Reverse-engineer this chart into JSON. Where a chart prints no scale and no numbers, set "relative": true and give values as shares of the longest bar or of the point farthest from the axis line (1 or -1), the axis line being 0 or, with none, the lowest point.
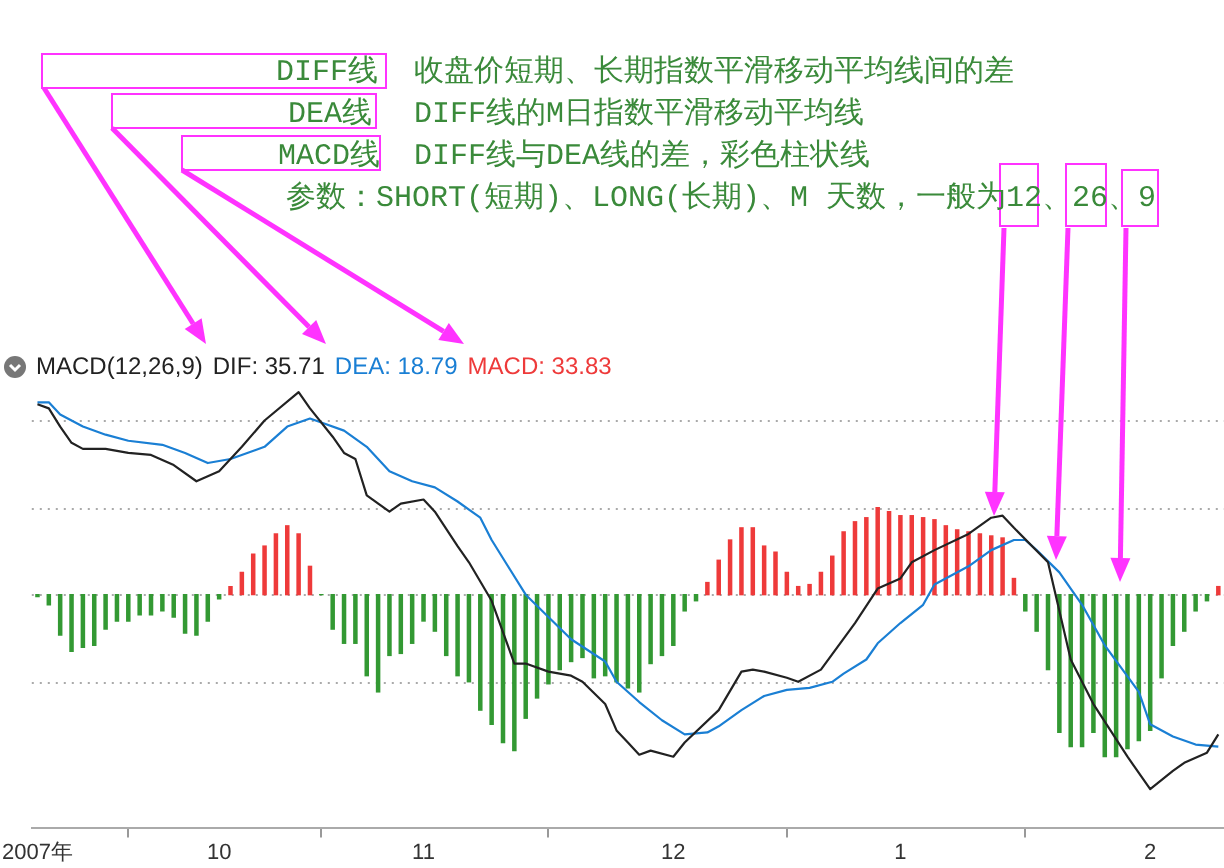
{
  "chart_data": {
    "type": "line",
    "relative": true,
    "legend_title": "MACD(12,26,9)",
    "legend": "top left",
    "grid": "y",
    "marker": "none",
    "line_style": "solid",
    "annotations": [
      "DIFF线",
      "收盘价短期、长期指数平滑移动平均线间的差",
      "DEA线",
      "DIFF线的M日指数平滑移动平均线",
      "MACD线",
      "DIFF线与DEA线的差，彩色柱状线",
      "参数：SHORT(短期)、LONG(长期)、M 天数，一般为12、26、9"
    ],
    "categories": [
      "2007年",
      null,
      null,
      null,
      null,
      null,
      null,
      null,
      null,
      null,
      null,
      null,
      null,
      null,
      null,
      null,
      "10",
      null,
      null,
      null,
      null,
      null,
      null,
      null,
      null,
      null,
      null,
      null,
      null,
      null,
      null,
      null,
      null,
      null,
      "11",
      null,
      null,
      null,
      null,
      null,
      null,
      null,
      null,
      null,
      null,
      null,
      null,
      null,
      null,
      null,
      null,
      null,
      null,
      null,
      null,
      null,
      "12",
      null,
      null,
      null,
      null,
      null,
      null,
      null,
      null,
      null,
      null,
      null,
      null,
      null,
      null,
      null,
      null,
      null,
      null,
      null,
      "1",
      null,
      null,
      null,
      null,
      null,
      null,
      null,
      null,
      null,
      null,
      null,
      null,
      null,
      null,
      null,
      null,
      null,
      null,
      null,
      null,
      null,
      "2",
      null,
      null,
      null,
      null,
      null,
      null
    ],
    "series": [
      {
        "name": "DIF: 35.71",
        "color": "#222222",
        "values": [
          0.94,
          0.92,
          0.83,
          0.75,
          0.72,
          null,
          0.72,
          null,
          0.7,
          null,
          0.69,
          null,
          0.64,
          null,
          0.56,
          null,
          0.61,
          null,
          0.73,
          null,
          0.86,
          null,
          null,
          1,
          0.92,
          null,
          0.78,
          0.7,
          0.67,
          0.49,
          null,
          0.41,
          0.45,
          null,
          0.47,
          0.41,
          null,
          0.24,
          0.16,
          null,
          -0.03,
          null,
          -0.34,
          -0.34,
          null,
          -0.38,
          null,
          -0.4,
          -0.43,
          null,
          -0.54,
          -0.67,
          -0.73,
          -0.79,
          -0.77,
          null,
          -0.8,
          -0.73,
          null,
          null,
          -0.57,
          null,
          -0.38,
          -0.37,
          -0.38,
          null,
          -0.41,
          -0.43,
          null,
          -0.37,
          null,
          null,
          -0.14,
          null,
          0.03,
          null,
          0.08,
          0.16,
          null,
          0.22,
          null,
          null,
          0.3,
          null,
          0.38,
          0.39,
          0.33,
          null,
          null,
          0.16,
          null,
          -0.32,
          null,
          -0.54,
          null,
          null,
          -0.8,
          null,
          -0.96,
          null,
          -0.87,
          -0.83,
          null,
          -0.78,
          -0.69
        ]
      },
      {
        "name": "DEA: 18.79",
        "color": "#1a7fd4",
        "values": [
          0.95,
          0.95,
          0.89,
          null,
          0.83,
          null,
          0.79,
          null,
          0.76,
          null,
          null,
          0.74,
          null,
          0.7,
          null,
          0.65,
          null,
          0.67,
          null,
          null,
          0.73,
          null,
          0.83,
          null,
          0.87,
          0.85,
          null,
          0.81,
          null,
          0.73,
          null,
          0.61,
          null,
          0.56,
          null,
          0.53,
          null,
          0.46,
          null,
          0.38,
          0.27,
          null,
          null,
          0,
          null,
          -0.11,
          null,
          -0.22,
          null,
          null,
          -0.33,
          -0.43,
          null,
          -0.53,
          null,
          -0.62,
          null,
          -0.69,
          null,
          -0.68,
          -0.65,
          null,
          -0.57,
          null,
          -0.5,
          null,
          -0.47,
          null,
          -0.46,
          null,
          -0.43,
          -0.39,
          null,
          -0.32,
          -0.24,
          null,
          -0.14,
          null,
          -0.05,
          0.05,
          null,
          null,
          0.14,
          null,
          0.22,
          null,
          0.27,
          0.27,
          0.22,
          null,
          0.11,
          null,
          -0.05,
          null,
          -0.25,
          null,
          null,
          -0.48,
          -0.64,
          null,
          -0.7,
          null,
          -0.74,
          null,
          -0.75
        ]
      },
      {
        "name": "MACD: 33.83",
        "type": "bar",
        "values": [
          -0.01,
          -0.05,
          -0.2,
          -0.28,
          -0.26,
          -0.25,
          -0.17,
          -0.13,
          -0.13,
          -0.1,
          -0.1,
          -0.08,
          -0.11,
          -0.19,
          -0.2,
          -0.13,
          -0.02,
          0.04,
          0.11,
          0.2,
          0.24,
          0.3,
          0.34,
          0.3,
          0.14,
          0,
          -0.17,
          -0.24,
          -0.24,
          -0.4,
          -0.48,
          -0.3,
          -0.29,
          -0.24,
          -0.13,
          -0.18,
          -0.3,
          -0.4,
          -0.43,
          -0.57,
          -0.64,
          -0.73,
          -0.77,
          -0.61,
          -0.51,
          -0.44,
          -0.37,
          -0.33,
          -0.31,
          -0.41,
          -0.4,
          -0.43,
          -0.46,
          -0.48,
          -0.34,
          -0.3,
          -0.25,
          -0.08,
          -0.03,
          0.06,
          0.17,
          0.27,
          0.33,
          0.33,
          0.24,
          0.21,
          0.11,
          0.04,
          0.05,
          0.11,
          0.19,
          0.31,
          0.36,
          0.38,
          0.43,
          0.41,
          0.39,
          0.39,
          0.38,
          0.37,
          0.34,
          0.32,
          0.31,
          0.3,
          0.29,
          0.28,
          0.08,
          -0.08,
          -0.18,
          -0.37,
          -0.68,
          -0.75,
          -0.75,
          -0.68,
          -0.8,
          -0.8,
          -0.76,
          -0.72,
          -0.67,
          -0.41,
          -0.25,
          -0.18,
          -0.08,
          -0.03,
          0.04
        ],
        "colors": [
          "#339933",
          "#339933",
          "#339933",
          "#339933",
          "#339933",
          "#339933",
          "#339933",
          "#339933",
          "#339933",
          "#339933",
          "#339933",
          "#339933",
          "#339933",
          "#339933",
          "#339933",
          "#339933",
          "#339933",
          "#ee3a3a",
          "#ee3a3a",
          "#ee3a3a",
          "#ee3a3a",
          "#ee3a3a",
          "#ee3a3a",
          "#ee3a3a",
          "#ee3a3a",
          "#339933",
          "#339933",
          "#339933",
          "#339933",
          "#339933",
          "#339933",
          "#339933",
          "#339933",
          "#339933",
          "#339933",
          "#339933",
          "#339933",
          "#339933",
          "#339933",
          "#339933",
          "#339933",
          "#339933",
          "#339933",
          "#339933",
          "#339933",
          "#339933",
          "#339933",
          "#339933",
          "#339933",
          "#339933",
          "#339933",
          "#339933",
          "#339933",
          "#339933",
          "#339933",
          "#339933",
          "#339933",
          "#339933",
          "#339933",
          "#ee3a3a",
          "#ee3a3a",
          "#ee3a3a",
          "#ee3a3a",
          "#ee3a3a",
          "#ee3a3a",
          "#ee3a3a",
          "#ee3a3a",
          "#ee3a3a",
          "#ee3a3a",
          "#ee3a3a",
          "#ee3a3a",
          "#ee3a3a",
          "#ee3a3a",
          "#ee3a3a",
          "#ee3a3a",
          "#ee3a3a",
          "#ee3a3a",
          "#ee3a3a",
          "#ee3a3a",
          "#ee3a3a",
          "#ee3a3a",
          "#ee3a3a",
          "#ee3a3a",
          "#ee3a3a",
          "#ee3a3a",
          "#ee3a3a",
          "#ee3a3a",
          "#339933",
          "#339933",
          "#339933",
          "#339933",
          "#339933",
          "#339933",
          "#339933",
          "#339933",
          "#339933",
          "#339933",
          "#339933",
          "#339933",
          "#339933",
          "#339933",
          "#339933",
          "#339933",
          "#339933",
          "#ee3a3a"
        ]
      }
    ]
  }
}
